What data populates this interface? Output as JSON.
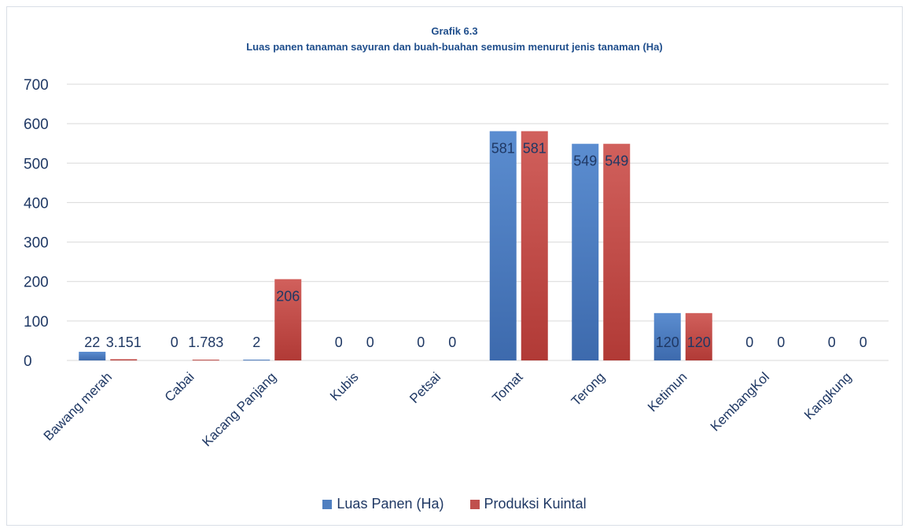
{
  "chart_data": {
    "type": "bar",
    "title": "Grafik 6.3",
    "subtitle": "Luas panen tanaman sayuran dan buah-buahan semusim menurut jenis tanaman (Ha)",
    "categories": [
      "Bawang merah",
      "Cabai",
      "Kacang Panjang",
      "Kubis",
      "Petsai",
      "Tomat",
      "Terong",
      "Ketimun",
      "KembangKol",
      "Kangkung"
    ],
    "series": [
      {
        "name": "Luas Panen (Ha)",
        "color": "#4f7fc0",
        "values": [
          22,
          0,
          2,
          0,
          0,
          581,
          549,
          120,
          0,
          0
        ],
        "labels": [
          "22",
          "0",
          "2",
          "0",
          "0",
          "581",
          "549",
          "120",
          "0",
          "0"
        ]
      },
      {
        "name": "Produksi Kuintal",
        "color": "#c0504d",
        "values": [
          3.151,
          1.783,
          206,
          0,
          0,
          581,
          549,
          120,
          0,
          0
        ],
        "labels": [
          "3.151",
          "1.783",
          "206",
          "0",
          "0",
          "581",
          "549",
          "120",
          "0",
          "0"
        ]
      }
    ],
    "yticks": [
      "0",
      "100",
      "200",
      "300",
      "400",
      "500",
      "600",
      "700"
    ],
    "ylim": [
      0,
      700
    ],
    "grid": true,
    "legend_position": "bottom"
  }
}
